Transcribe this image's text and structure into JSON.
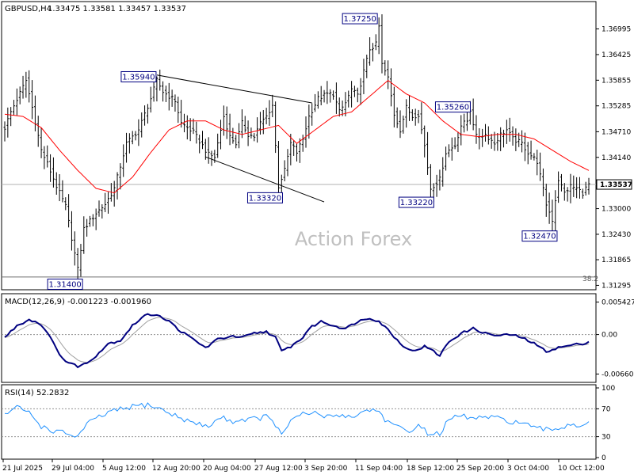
{
  "colors": {
    "price_bars": "#000000",
    "ma_line": "#ff0000",
    "macd_main": "#000080",
    "macd_signal": "#a0a0a0",
    "rsi_line": "#1e90ff",
    "label_border": "#000080",
    "watermark": "#c0c0c0",
    "grid": "#000000"
  },
  "chart_data": [
    {
      "type": "ohlc",
      "title": "GBPUSD,H4",
      "ohlc_label": "1.33475 1.33581 1.33457 1.33537",
      "watermark": "Action Forex",
      "ylim": [
        1.3125,
        1.3755
      ],
      "y_ticks": [
        "1.36995",
        "1.36425",
        "1.35855",
        "1.35285",
        "1.34710",
        "1.34140",
        "1.33570",
        "1.33000",
        "1.32430",
        "1.31865",
        "1.31295"
      ],
      "y_tick_values": [
        1.36995,
        1.36425,
        1.35855,
        1.35285,
        1.3471,
        1.3414,
        1.3357,
        1.33,
        1.3243,
        1.31865,
        1.31295
      ],
      "current_price": "1.33537",
      "fib_label": "38.2",
      "fib_level": 1.3148,
      "x_ticks": [
        "21 Jul 2025",
        "29 Jul 04:00",
        "5 Aug 12:00",
        "12 Aug 20:00",
        "20 Aug 04:00",
        "27 Aug 12:00",
        "3 Sep 20:00",
        "11 Sep 04:00",
        "18 Sep 12:00",
        "25 Sep 20:00",
        "3 Oct 04:00",
        "10 Oct 12:00"
      ],
      "price_labels": [
        {
          "text": "1.35940",
          "price": 1.3594,
          "bar": 50
        },
        {
          "text": "1.37250",
          "price": 1.3725,
          "bar": 123
        },
        {
          "text": "1.35260",
          "price": 1.3526,
          "bar": 152
        },
        {
          "text": "1.33320",
          "price": 1.3332,
          "bar": 90
        },
        {
          "text": "1.33220",
          "price": 1.3322,
          "bar": 140
        },
        {
          "text": "1.32470",
          "price": 1.3247,
          "bar": 180
        },
        {
          "text": "1.31400",
          "price": 1.314,
          "bar": 24
        }
      ],
      "anchors": [
        [
          0,
          1.348
        ],
        [
          2,
          1.3515
        ],
        [
          7,
          1.3585
        ],
        [
          9,
          1.3525
        ],
        [
          12,
          1.343
        ],
        [
          14,
          1.34
        ],
        [
          17,
          1.335
        ],
        [
          20,
          1.3305
        ],
        [
          24,
          1.3165
        ],
        [
          26,
          1.3255
        ],
        [
          30,
          1.329
        ],
        [
          33,
          1.331
        ],
        [
          36,
          1.3345
        ],
        [
          40,
          1.3445
        ],
        [
          44,
          1.3475
        ],
        [
          48,
          1.3545
        ],
        [
          50,
          1.3585
        ],
        [
          52,
          1.356
        ],
        [
          56,
          1.354
        ],
        [
          58,
          1.349
        ],
        [
          62,
          1.347
        ],
        [
          67,
          1.342
        ],
        [
          69,
          1.3415
        ],
        [
          72,
          1.3505
        ],
        [
          74,
          1.346
        ],
        [
          76,
          1.3445
        ],
        [
          78,
          1.349
        ],
        [
          80,
          1.3465
        ],
        [
          82,
          1.346
        ],
        [
          84,
          1.349
        ],
        [
          86,
          1.3505
        ],
        [
          88,
          1.353
        ],
        [
          90,
          1.335
        ],
        [
          92,
          1.3385
        ],
        [
          94,
          1.3445
        ],
        [
          96,
          1.3425
        ],
        [
          98,
          1.3455
        ],
        [
          100,
          1.3505
        ],
        [
          103,
          1.3545
        ],
        [
          106,
          1.3555
        ],
        [
          108,
          1.3555
        ],
        [
          110,
          1.3515
        ],
        [
          112,
          1.3535
        ],
        [
          114,
          1.3565
        ],
        [
          116,
          1.355
        ],
        [
          118,
          1.3605
        ],
        [
          120,
          1.3655
        ],
        [
          122,
          1.3665
        ],
        [
          123,
          1.3705
        ],
        [
          124,
          1.362
        ],
        [
          126,
          1.359
        ],
        [
          128,
          1.351
        ],
        [
          130,
          1.3475
        ],
        [
          132,
          1.3525
        ],
        [
          134,
          1.3505
        ],
        [
          136,
          1.351
        ],
        [
          138,
          1.344
        ],
        [
          140,
          1.3345
        ],
        [
          143,
          1.3365
        ],
        [
          145,
          1.3425
        ],
        [
          148,
          1.344
        ],
        [
          150,
          1.3485
        ],
        [
          152,
          1.3495
        ],
        [
          153,
          1.352
        ],
        [
          155,
          1.346
        ],
        [
          158,
          1.3465
        ],
        [
          161,
          1.3445
        ],
        [
          163,
          1.3465
        ],
        [
          165,
          1.3475
        ],
        [
          167,
          1.3455
        ],
        [
          170,
          1.3445
        ],
        [
          172,
          1.3425
        ],
        [
          175,
          1.3405
        ],
        [
          178,
          1.331
        ],
        [
          180,
          1.3275
        ],
        [
          182,
          1.3365
        ],
        [
          184,
          1.3335
        ],
        [
          186,
          1.335
        ],
        [
          188,
          1.3345
        ],
        [
          190,
          1.3335
        ],
        [
          191,
          1.3345
        ],
        [
          192,
          1.3354
        ]
      ],
      "ma_anchors": [
        [
          0,
          1.351
        ],
        [
          6,
          1.3505
        ],
        [
          12,
          1.348
        ],
        [
          18,
          1.343
        ],
        [
          24,
          1.3385
        ],
        [
          30,
          1.3345
        ],
        [
          36,
          1.3335
        ],
        [
          42,
          1.337
        ],
        [
          48,
          1.3425
        ],
        [
          54,
          1.3475
        ],
        [
          60,
          1.3495
        ],
        [
          66,
          1.3495
        ],
        [
          72,
          1.3475
        ],
        [
          78,
          1.3465
        ],
        [
          84,
          1.3475
        ],
        [
          90,
          1.3485
        ],
        [
          96,
          1.3445
        ],
        [
          102,
          1.3475
        ],
        [
          108,
          1.3505
        ],
        [
          114,
          1.3515
        ],
        [
          120,
          1.355
        ],
        [
          126,
          1.3585
        ],
        [
          132,
          1.3555
        ],
        [
          138,
          1.3535
        ],
        [
          144,
          1.3495
        ],
        [
          150,
          1.3465
        ],
        [
          156,
          1.346
        ],
        [
          162,
          1.3465
        ],
        [
          168,
          1.3465
        ],
        [
          174,
          1.3455
        ],
        [
          180,
          1.343
        ],
        [
          186,
          1.3405
        ],
        [
          192,
          1.3385
        ]
      ],
      "trendlines": [
        {
          "from": [
            50,
            1.3597
          ],
          "to": [
            101,
            1.3535
          ]
        },
        {
          "from": [
            66,
            1.3415
          ],
          "to": [
            105,
            1.3315
          ]
        }
      ]
    },
    {
      "type": "line",
      "title": "MACD(12,26,9) -0.001223 -0.001960",
      "ylim": [
        -0.0076,
        0.0063
      ],
      "y_ticks": [
        "0.005427",
        "0.00",
        "-0.006603"
      ],
      "y_tick_values": [
        0.005427,
        0.0,
        -0.006603
      ],
      "anchors": [
        [
          0,
          -0.0005
        ],
        [
          4,
          0.0015
        ],
        [
          8,
          0.0025
        ],
        [
          11,
          0.002
        ],
        [
          14,
          0.0005
        ],
        [
          17,
          -0.0025
        ],
        [
          20,
          -0.0045
        ],
        [
          24,
          -0.0053
        ],
        [
          27,
          -0.0048
        ],
        [
          30,
          -0.0035
        ],
        [
          34,
          -0.0015
        ],
        [
          38,
          -0.001
        ],
        [
          42,
          0.0015
        ],
        [
          46,
          0.0032
        ],
        [
          50,
          0.0034
        ],
        [
          54,
          0.0022
        ],
        [
          58,
          0.0005
        ],
        [
          62,
          -0.0008
        ],
        [
          66,
          -0.0022
        ],
        [
          70,
          -0.0008
        ],
        [
          74,
          -0.0003
        ],
        [
          78,
          -0.0005
        ],
        [
          82,
          0.0002
        ],
        [
          86,
          0.0005
        ],
        [
          89,
          -0.0005
        ],
        [
          91,
          -0.0028
        ],
        [
          94,
          -0.002
        ],
        [
          98,
          -0.0005
        ],
        [
          100,
          0.001
        ],
        [
          104,
          0.0022
        ],
        [
          108,
          0.0015
        ],
        [
          112,
          0.001
        ],
        [
          116,
          0.0022
        ],
        [
          120,
          0.0028
        ],
        [
          123,
          0.0022
        ],
        [
          126,
          0.0008
        ],
        [
          130,
          -0.0015
        ],
        [
          134,
          -0.0028
        ],
        [
          138,
          -0.002
        ],
        [
          140,
          -0.0025
        ],
        [
          143,
          -0.0035
        ],
        [
          146,
          -0.0012
        ],
        [
          150,
          0.0002
        ],
        [
          154,
          0.001
        ],
        [
          158,
          0.0002
        ],
        [
          162,
          -0.0002
        ],
        [
          166,
          0.0
        ],
        [
          170,
          -0.0005
        ],
        [
          174,
          -0.0015
        ],
        [
          178,
          -0.0028
        ],
        [
          182,
          -0.0022
        ],
        [
          186,
          -0.0018
        ],
        [
          190,
          -0.0015
        ],
        [
          192,
          -0.0012
        ]
      ]
    },
    {
      "type": "line",
      "title": "RSI(14) 52.2832",
      "ylim": [
        0,
        100
      ],
      "y_ticks": [
        "100",
        "70",
        "30",
        "0"
      ],
      "y_tick_values": [
        100,
        70,
        30,
        0
      ],
      "anchors": [
        [
          0,
          62
        ],
        [
          4,
          72
        ],
        [
          8,
          65
        ],
        [
          12,
          45
        ],
        [
          16,
          38
        ],
        [
          20,
          35
        ],
        [
          24,
          30
        ],
        [
          27,
          48
        ],
        [
          31,
          58
        ],
        [
          35,
          66
        ],
        [
          39,
          70
        ],
        [
          43,
          74
        ],
        [
          47,
          76
        ],
        [
          51,
          70
        ],
        [
          55,
          62
        ],
        [
          59,
          55
        ],
        [
          63,
          48
        ],
        [
          67,
          45
        ],
        [
          71,
          58
        ],
        [
          75,
          52
        ],
        [
          79,
          55
        ],
        [
          83,
          56
        ],
        [
          87,
          60
        ],
        [
          89,
          42
        ],
        [
          91,
          35
        ],
        [
          94,
          52
        ],
        [
          98,
          62
        ],
        [
          102,
          64
        ],
        [
          106,
          58
        ],
        [
          110,
          62
        ],
        [
          114,
          58
        ],
        [
          118,
          66
        ],
        [
          122,
          70
        ],
        [
          125,
          55
        ],
        [
          128,
          45
        ],
        [
          132,
          38
        ],
        [
          136,
          45
        ],
        [
          140,
          33
        ],
        [
          143,
          35
        ],
        [
          146,
          54
        ],
        [
          150,
          60
        ],
        [
          154,
          56
        ],
        [
          158,
          58
        ],
        [
          162,
          56
        ],
        [
          166,
          52
        ],
        [
          170,
          50
        ],
        [
          174,
          42
        ],
        [
          178,
          40
        ],
        [
          182,
          42
        ],
        [
          186,
          48
        ],
        [
          189,
          46
        ],
        [
          192,
          52
        ]
      ]
    }
  ]
}
